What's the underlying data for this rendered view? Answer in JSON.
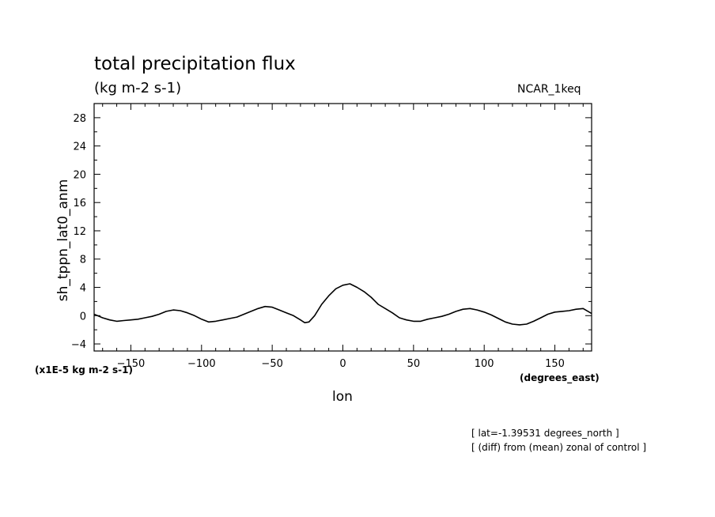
{
  "header": {
    "title": "total precipitation flux",
    "units": "(kg m-2 s-1)",
    "model": "NCAR_1keq"
  },
  "footer": {
    "scale_note": "(x1E-5 kg m-2 s-1)",
    "x_unit": "(degrees_east)",
    "note_lat": "[ lat=-1.39531 degrees_north ]",
    "note_diff": "[ (diff) from (mean) zonal of control ]"
  },
  "chart_data": {
    "type": "line",
    "title": "total precipitation flux",
    "xlabel": "lon",
    "ylabel": "sh_tppn_lat0_anm",
    "xlim": [
      -176,
      176
    ],
    "ylim": [
      -5,
      30
    ],
    "xticks": [
      -150,
      -100,
      -50,
      0,
      50,
      100,
      150
    ],
    "yticks": [
      -4,
      0,
      4,
      8,
      12,
      16,
      20,
      24,
      28
    ],
    "grid": false,
    "series": [
      {
        "color": "#000000",
        "x": [
          -176,
          -170,
          -165,
          -160,
          -155,
          -150,
          -145,
          -140,
          -135,
          -130,
          -125,
          -120,
          -115,
          -110,
          -105,
          -100,
          -95,
          -90,
          -85,
          -80,
          -75,
          -70,
          -65,
          -60,
          -55,
          -50,
          -45,
          -40,
          -35,
          -30,
          -27,
          -24,
          -20,
          -15,
          -10,
          -5,
          0,
          5,
          10,
          15,
          20,
          25,
          30,
          35,
          40,
          45,
          50,
          55,
          60,
          65,
          70,
          75,
          80,
          85,
          90,
          95,
          100,
          105,
          110,
          115,
          120,
          125,
          130,
          135,
          140,
          145,
          150,
          155,
          160,
          165,
          170,
          176
        ],
        "y": [
          0.2,
          -0.3,
          -0.6,
          -0.8,
          -0.7,
          -0.6,
          -0.5,
          -0.3,
          -0.1,
          0.2,
          0.6,
          0.8,
          0.7,
          0.4,
          0.0,
          -0.5,
          -0.9,
          -0.8,
          -0.6,
          -0.4,
          -0.2,
          0.2,
          0.6,
          1.0,
          1.3,
          1.2,
          0.8,
          0.4,
          0.0,
          -0.6,
          -1.0,
          -0.9,
          0.0,
          1.6,
          2.8,
          3.8,
          4.3,
          4.5,
          4.0,
          3.4,
          2.6,
          1.6,
          1.0,
          0.4,
          -0.3,
          -0.6,
          -0.8,
          -0.8,
          -0.5,
          -0.3,
          -0.1,
          0.2,
          0.6,
          0.9,
          1.0,
          0.8,
          0.5,
          0.1,
          -0.4,
          -0.9,
          -1.2,
          -1.3,
          -1.2,
          -0.8,
          -0.3,
          0.2,
          0.5,
          0.6,
          0.7,
          0.9,
          1.0,
          0.3
        ]
      }
    ]
  }
}
